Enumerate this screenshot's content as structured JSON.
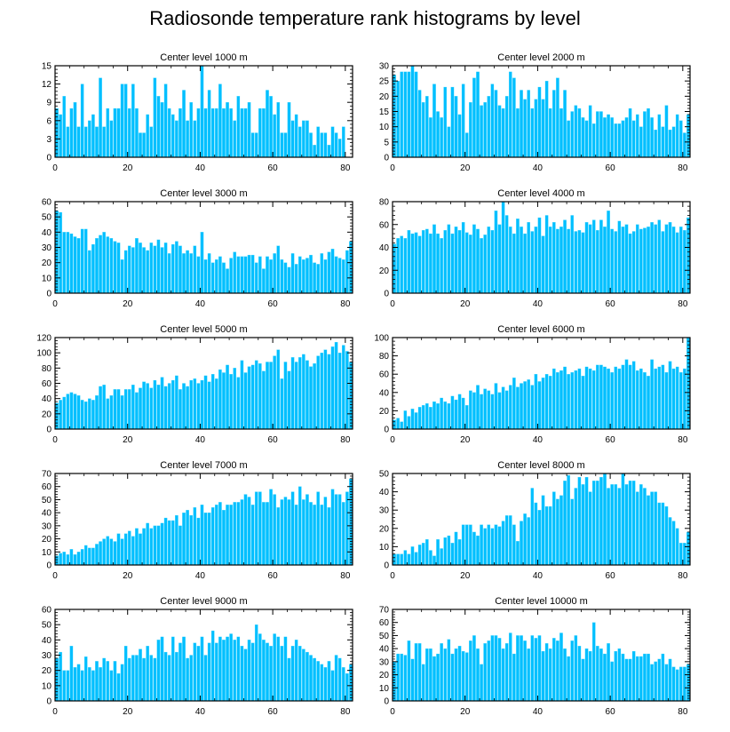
{
  "title": "Radiosonde temperature rank histograms by level",
  "colors": {
    "bar": "#00BFFF",
    "bar_edge": "#4FD7FF",
    "axis": "#000000"
  },
  "chart_data": [
    {
      "type": "bar",
      "title": "Center level 1000 m",
      "xlabel": "",
      "ylabel": "",
      "xlim": [
        0,
        82
      ],
      "ylim": [
        0,
        15
      ],
      "xticks": [
        0,
        20,
        40,
        60,
        80
      ],
      "yticks": [
        0,
        3,
        6,
        9,
        12,
        15
      ],
      "values": [
        8,
        7,
        10,
        5,
        8,
        9,
        5,
        12,
        5,
        6,
        7,
        5,
        13,
        5,
        8,
        6,
        8,
        8,
        12,
        12,
        8,
        12,
        8,
        4,
        4,
        7,
        5,
        13,
        10,
        9,
        12,
        8,
        7,
        6,
        8,
        11,
        6,
        9,
        6,
        8,
        15,
        8,
        11,
        8,
        8,
        12,
        8,
        9,
        8,
        6,
        10,
        8,
        8,
        9,
        4,
        4,
        8,
        8,
        11,
        10,
        7,
        9,
        4,
        4,
        9,
        6,
        7,
        5,
        6,
        6,
        4,
        2,
        5,
        4,
        4,
        2,
        5,
        4,
        3,
        5,
        0,
        0,
        6,
        4
      ]
    },
    {
      "type": "bar",
      "title": "Center level 2000 m",
      "xlabel": "",
      "ylabel": "",
      "xlim": [
        0,
        82
      ],
      "ylim": [
        0,
        30
      ],
      "xticks": [
        0,
        20,
        40,
        60,
        80
      ],
      "yticks": [
        0,
        5,
        10,
        15,
        20,
        25,
        30
      ],
      "values": [
        27,
        25,
        28,
        28,
        28,
        30,
        28,
        22,
        18,
        20,
        13,
        24,
        15,
        13,
        23,
        10,
        23,
        20,
        14,
        24,
        8,
        18,
        26,
        28,
        17,
        18,
        20,
        24,
        22,
        17,
        16,
        20,
        28,
        26,
        16,
        22,
        19,
        22,
        16,
        19,
        23,
        19,
        25,
        16,
        22,
        26,
        16,
        22,
        12,
        15,
        17,
        16,
        13,
        12,
        17,
        11,
        15,
        15,
        13,
        14,
        13,
        11,
        11,
        12,
        13,
        16,
        12,
        14,
        10,
        15,
        16,
        13,
        9,
        14,
        10,
        17,
        9,
        10,
        14,
        12,
        8,
        14,
        17,
        19
      ]
    },
    {
      "type": "bar",
      "title": "Center level 3000 m",
      "xlabel": "",
      "ylabel": "",
      "xlim": [
        0,
        82
      ],
      "ylim": [
        0,
        60
      ],
      "xticks": [
        0,
        20,
        40,
        60,
        80
      ],
      "yticks": [
        0,
        10,
        20,
        30,
        40,
        50,
        60
      ],
      "values": [
        54,
        53,
        40,
        40,
        39,
        37,
        36,
        42,
        42,
        28,
        32,
        36,
        38,
        40,
        37,
        36,
        34,
        33,
        22,
        28,
        31,
        30,
        36,
        33,
        30,
        28,
        33,
        31,
        35,
        30,
        33,
        26,
        32,
        34,
        31,
        26,
        28,
        26,
        31,
        24,
        40,
        22,
        26,
        20,
        22,
        24,
        20,
        16,
        23,
        27,
        24,
        24,
        24,
        25,
        25,
        20,
        24,
        16,
        24,
        22,
        26,
        31,
        22,
        20,
        17,
        26,
        19,
        24,
        22,
        23,
        25,
        20,
        19,
        26,
        22,
        27,
        29,
        24,
        23,
        22,
        28,
        34,
        26,
        26
      ]
    },
    {
      "type": "bar",
      "title": "Center level 4000 m",
      "xlabel": "",
      "ylabel": "",
      "xlim": [
        0,
        82
      ],
      "ylim": [
        0,
        80
      ],
      "xticks": [
        0,
        20,
        40,
        60,
        80
      ],
      "yticks": [
        0,
        20,
        40,
        60,
        80
      ],
      "values": [
        43,
        48,
        50,
        48,
        55,
        52,
        53,
        50,
        55,
        56,
        52,
        60,
        52,
        48,
        55,
        60,
        52,
        58,
        55,
        62,
        53,
        51,
        60,
        56,
        48,
        51,
        58,
        55,
        72,
        60,
        80,
        68,
        58,
        52,
        65,
        58,
        52,
        62,
        54,
        58,
        66,
        50,
        68,
        58,
        62,
        56,
        58,
        64,
        56,
        68,
        54,
        55,
        53,
        62,
        60,
        64,
        55,
        64,
        58,
        72,
        56,
        54,
        63,
        58,
        60,
        52,
        54,
        60,
        56,
        57,
        58,
        62,
        60,
        64,
        54,
        60,
        62,
        58,
        53,
        58,
        55,
        66,
        52,
        48
      ]
    },
    {
      "type": "bar",
      "title": "Center level 5000 m",
      "xlabel": "",
      "ylabel": "",
      "xlim": [
        0,
        82
      ],
      "ylim": [
        0,
        120
      ],
      "xticks": [
        0,
        20,
        40,
        60,
        80
      ],
      "yticks": [
        0,
        20,
        40,
        60,
        80,
        100,
        120
      ],
      "values": [
        34,
        38,
        42,
        46,
        48,
        46,
        44,
        38,
        36,
        40,
        38,
        44,
        56,
        58,
        40,
        44,
        52,
        52,
        44,
        52,
        52,
        58,
        48,
        54,
        62,
        60,
        54,
        64,
        58,
        68,
        56,
        60,
        64,
        70,
        52,
        60,
        56,
        64,
        66,
        60,
        64,
        70,
        62,
        72,
        66,
        78,
        74,
        84,
        72,
        80,
        68,
        90,
        74,
        82,
        84,
        90,
        86,
        76,
        88,
        88,
        96,
        104,
        66,
        88,
        76,
        94,
        88,
        94,
        98,
        90,
        82,
        86,
        96,
        100,
        104,
        98,
        108,
        114,
        100,
        110,
        102,
        88,
        80,
        86
      ]
    },
    {
      "type": "bar",
      "title": "Center level 6000 m",
      "xlabel": "",
      "ylabel": "",
      "xlim": [
        0,
        82
      ],
      "ylim": [
        0,
        100
      ],
      "xticks": [
        0,
        20,
        40,
        60,
        80
      ],
      "yticks": [
        0,
        20,
        40,
        60,
        80,
        100
      ],
      "values": [
        10,
        12,
        8,
        20,
        14,
        22,
        18,
        24,
        26,
        28,
        24,
        30,
        28,
        34,
        30,
        28,
        36,
        32,
        38,
        34,
        26,
        42,
        40,
        48,
        38,
        44,
        42,
        38,
        50,
        40,
        46,
        42,
        48,
        56,
        46,
        50,
        52,
        54,
        48,
        60,
        52,
        56,
        60,
        58,
        66,
        62,
        64,
        68,
        60,
        62,
        64,
        66,
        58,
        68,
        66,
        64,
        70,
        70,
        68,
        66,
        62,
        68,
        66,
        70,
        76,
        70,
        74,
        64,
        66,
        62,
        58,
        76,
        66,
        68,
        70,
        62,
        74,
        66,
        68,
        62,
        66,
        100,
        84,
        80,
        76
      ]
    },
    {
      "type": "bar",
      "title": "Center level 7000 m",
      "xlabel": "",
      "ylabel": "",
      "xlim": [
        0,
        82
      ],
      "ylim": [
        0,
        70
      ],
      "xticks": [
        0,
        20,
        40,
        60,
        80
      ],
      "yticks": [
        0,
        10,
        20,
        30,
        40,
        50,
        60,
        70
      ],
      "values": [
        7,
        9,
        10,
        8,
        12,
        8,
        10,
        12,
        15,
        13,
        13,
        16,
        18,
        20,
        22,
        20,
        18,
        24,
        20,
        24,
        26,
        22,
        28,
        24,
        28,
        32,
        28,
        30,
        30,
        32,
        36,
        34,
        34,
        38,
        30,
        40,
        42,
        38,
        44,
        36,
        46,
        40,
        40,
        44,
        46,
        48,
        42,
        46,
        46,
        48,
        48,
        50,
        54,
        52,
        46,
        56,
        56,
        48,
        48,
        58,
        54,
        44,
        50,
        52,
        50,
        56,
        46,
        60,
        50,
        54,
        48,
        46,
        56,
        46,
        52,
        44,
        58,
        54,
        54,
        48,
        56,
        66,
        60,
        52
      ]
    },
    {
      "type": "bar",
      "title": "Center level 8000 m",
      "xlabel": "",
      "ylabel": "",
      "xlim": [
        0,
        82
      ],
      "ylim": [
        0,
        50
      ],
      "xticks": [
        0,
        20,
        40,
        60,
        80
      ],
      "yticks": [
        0,
        10,
        20,
        30,
        40,
        50
      ],
      "values": [
        6,
        6,
        6,
        8,
        6,
        10,
        7,
        11,
        12,
        14,
        8,
        5,
        14,
        9,
        15,
        16,
        12,
        18,
        14,
        22,
        22,
        22,
        18,
        16,
        22,
        20,
        22,
        20,
        22,
        21,
        24,
        27,
        27,
        22,
        13,
        24,
        28,
        26,
        42,
        34,
        30,
        38,
        32,
        32,
        40,
        36,
        38,
        46,
        49,
        36,
        42,
        48,
        44,
        48,
        40,
        46,
        46,
        48,
        50,
        42,
        44,
        44,
        42,
        50,
        44,
        46,
        46,
        40,
        44,
        42,
        38,
        40,
        40,
        34,
        34,
        32,
        26,
        24,
        20,
        12,
        12,
        18,
        15,
        14
      ]
    },
    {
      "type": "bar",
      "title": "Center level 9000 m",
      "xlabel": "",
      "ylabel": "",
      "xlim": [
        0,
        82
      ],
      "ylim": [
        0,
        60
      ],
      "xticks": [
        0,
        20,
        40,
        60,
        80
      ],
      "yticks": [
        0,
        10,
        20,
        30,
        40,
        50,
        60
      ],
      "values": [
        28,
        32,
        20,
        20,
        36,
        22,
        24,
        20,
        29,
        22,
        20,
        26,
        22,
        28,
        26,
        20,
        26,
        18,
        24,
        36,
        28,
        30,
        30,
        34,
        28,
        36,
        30,
        28,
        40,
        42,
        32,
        30,
        42,
        32,
        38,
        42,
        28,
        30,
        38,
        36,
        42,
        30,
        38,
        46,
        38,
        42,
        40,
        42,
        44,
        40,
        42,
        36,
        34,
        40,
        38,
        50,
        44,
        40,
        38,
        36,
        44,
        42,
        36,
        42,
        28,
        36,
        40,
        36,
        34,
        32,
        30,
        28,
        26,
        24,
        22,
        26,
        20,
        30,
        28,
        22,
        18,
        24,
        22,
        14
      ]
    },
    {
      "type": "bar",
      "title": "Center level 10000 m",
      "xlabel": "",
      "ylabel": "",
      "xlim": [
        0,
        82
      ],
      "ylim": [
        0,
        70
      ],
      "xticks": [
        0,
        20,
        40,
        60,
        80
      ],
      "yticks": [
        0,
        10,
        20,
        30,
        40,
        50,
        60,
        70
      ],
      "values": [
        30,
        36,
        36,
        35,
        46,
        32,
        44,
        44,
        28,
        40,
        40,
        34,
        36,
        44,
        40,
        47,
        36,
        40,
        42,
        38,
        37,
        46,
        50,
        40,
        28,
        44,
        46,
        50,
        50,
        48,
        40,
        44,
        52,
        36,
        50,
        50,
        46,
        40,
        50,
        48,
        50,
        38,
        44,
        40,
        48,
        46,
        52,
        40,
        34,
        46,
        50,
        42,
        32,
        40,
        38,
        60,
        42,
        40,
        36,
        44,
        30,
        38,
        40,
        36,
        32,
        32,
        38,
        34,
        34,
        36,
        36,
        28,
        30,
        32,
        36,
        28,
        32,
        26,
        24,
        26,
        26,
        28,
        20,
        18
      ]
    }
  ]
}
